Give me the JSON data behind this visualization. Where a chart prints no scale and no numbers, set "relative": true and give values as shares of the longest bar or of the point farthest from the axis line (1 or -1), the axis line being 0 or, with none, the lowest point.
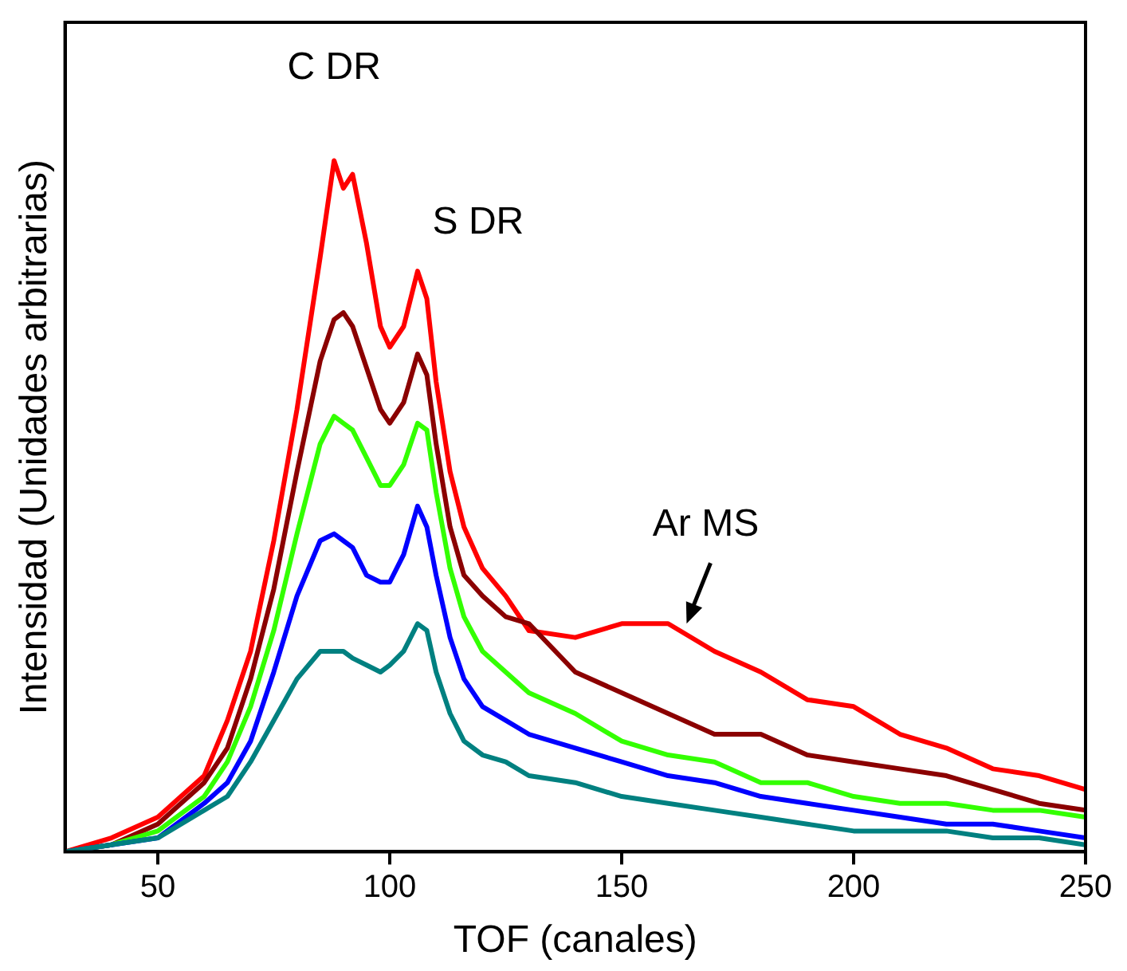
{
  "chart_data": {
    "type": "line",
    "relative": true,
    "xlabel": "TOF (canales)",
    "ylabel": "Intensidad (Unidades arbitrarias)",
    "x": [
      30,
      40,
      50,
      60,
      65,
      70,
      75,
      80,
      85,
      88,
      90,
      92,
      95,
      98,
      100,
      103,
      106,
      108,
      110,
      113,
      116,
      120,
      125,
      130,
      140,
      150,
      160,
      170,
      180,
      190,
      200,
      210,
      220,
      230,
      240,
      250
    ],
    "xlim": [
      30,
      250
    ],
    "xticks": [
      50,
      100,
      150,
      200,
      250
    ],
    "tick_labels": "x",
    "grid": false,
    "legend": false,
    "marker": "none",
    "line_style": "solid",
    "series": [
      {
        "color": "#ff0000",
        "values": [
          0,
          0.02,
          0.05,
          0.11,
          0.19,
          0.29,
          0.45,
          0.64,
          0.86,
          1,
          0.96,
          0.98,
          0.88,
          0.76,
          0.73,
          0.76,
          0.84,
          0.8,
          0.68,
          0.55,
          0.47,
          0.41,
          0.37,
          0.32,
          0.31,
          0.33,
          0.33,
          0.29,
          0.26,
          0.22,
          0.21,
          0.17,
          0.15,
          0.12,
          0.11,
          0.09
        ]
      },
      {
        "color": "#8b0000",
        "values": [
          0,
          0.01,
          0.04,
          0.1,
          0.15,
          0.25,
          0.38,
          0.55,
          0.71,
          0.77,
          0.78,
          0.76,
          0.7,
          0.64,
          0.62,
          0.65,
          0.72,
          0.69,
          0.59,
          0.47,
          0.4,
          0.37,
          0.34,
          0.33,
          0.26,
          0.23,
          0.2,
          0.17,
          0.17,
          0.14,
          0.13,
          0.12,
          0.11,
          0.09,
          0.07,
          0.06
        ]
      },
      {
        "color": "#33ff00",
        "values": [
          0,
          0.01,
          0.03,
          0.08,
          0.13,
          0.21,
          0.32,
          0.46,
          0.59,
          0.63,
          0.62,
          0.61,
          0.57,
          0.53,
          0.53,
          0.56,
          0.62,
          0.61,
          0.52,
          0.41,
          0.34,
          0.29,
          0.26,
          0.23,
          0.2,
          0.16,
          0.14,
          0.13,
          0.1,
          0.1,
          0.08,
          0.07,
          0.07,
          0.06,
          0.06,
          0.05
        ]
      },
      {
        "color": "#0000ff",
        "values": [
          0,
          0.01,
          0.02,
          0.07,
          0.1,
          0.16,
          0.26,
          0.37,
          0.45,
          0.46,
          0.45,
          0.44,
          0.4,
          0.39,
          0.39,
          0.43,
          0.5,
          0.47,
          0.4,
          0.31,
          0.25,
          0.21,
          0.19,
          0.17,
          0.15,
          0.13,
          0.11,
          0.1,
          0.08,
          0.07,
          0.06,
          0.05,
          0.04,
          0.04,
          0.03,
          0.02
        ]
      },
      {
        "color": "#008080",
        "values": [
          0,
          0.01,
          0.02,
          0.06,
          0.08,
          0.13,
          0.19,
          0.25,
          0.29,
          0.29,
          0.29,
          0.28,
          0.27,
          0.26,
          0.27,
          0.29,
          0.33,
          0.32,
          0.26,
          0.2,
          0.16,
          0.14,
          0.13,
          0.11,
          0.1,
          0.08,
          0.07,
          0.06,
          0.05,
          0.04,
          0.03,
          0.03,
          0.03,
          0.02,
          0.02,
          0.01
        ]
      }
    ],
    "annotations": [
      {
        "text": "C DR",
        "x": 88,
        "y": 1
      },
      {
        "text": "S DR",
        "x": 106,
        "y": 0.84
      },
      {
        "text": "Ar MS",
        "x": 164,
        "y": 0.33
      }
    ]
  }
}
